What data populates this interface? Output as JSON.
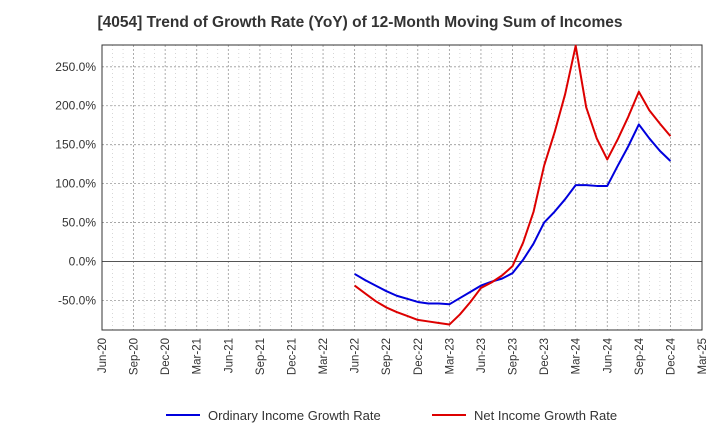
{
  "chart_data": {
    "type": "line",
    "title": "[4054]  Trend of Growth Rate (YoY) of 12-Month Moving Sum of Incomes",
    "xlabel": "",
    "ylabel": "",
    "x_ticks": [
      "Jun-20",
      "Sep-20",
      "Dec-20",
      "Mar-21",
      "Jun-21",
      "Sep-21",
      "Dec-21",
      "Mar-22",
      "Jun-22",
      "Sep-22",
      "Dec-22",
      "Mar-23",
      "Jun-23",
      "Sep-23",
      "Dec-23",
      "Mar-24",
      "Jun-24",
      "Sep-24",
      "Dec-24",
      "Mar-25"
    ],
    "y_ticks": [
      "-50.0%",
      "0.0%",
      "50.0%",
      "100.0%",
      "150.0%",
      "200.0%",
      "250.0%"
    ],
    "ylim": [
      -88,
      278
    ],
    "xlim": [
      "Jun-20",
      "Mar-25"
    ],
    "grid": true,
    "legend_position": "bottom",
    "series": [
      {
        "name": "Ordinary Income Growth Rate",
        "color": "#0000dd",
        "points": [
          [
            "Jun-22",
            -16
          ],
          [
            "Jul-22",
            -24
          ],
          [
            "Aug-22",
            -31
          ],
          [
            "Sep-22",
            -38
          ],
          [
            "Oct-22",
            -44
          ],
          [
            "Nov-22",
            -48
          ],
          [
            "Dec-22",
            -52
          ],
          [
            "Jan-23",
            -54
          ],
          [
            "Feb-23",
            -54
          ],
          [
            "Mar-23",
            -55
          ],
          [
            "Apr-23",
            -47
          ],
          [
            "May-23",
            -39
          ],
          [
            "Jun-23",
            -31
          ],
          [
            "Jul-23",
            -26
          ],
          [
            "Aug-23",
            -22
          ],
          [
            "Sep-23",
            -15
          ],
          [
            "Oct-23",
            2
          ],
          [
            "Nov-23",
            23
          ],
          [
            "Dec-23",
            50
          ],
          [
            "Jan-24",
            64
          ],
          [
            "Feb-24",
            80
          ],
          [
            "Mar-24",
            98
          ],
          [
            "Apr-24",
            98
          ],
          [
            "May-24",
            97
          ],
          [
            "Jun-24",
            97
          ],
          [
            "Jul-24",
            123
          ],
          [
            "Aug-24",
            148
          ],
          [
            "Sep-24",
            176
          ],
          [
            "Oct-24",
            158
          ],
          [
            "Nov-24",
            142
          ],
          [
            "Dec-24",
            129
          ]
        ]
      },
      {
        "name": "Net Income Growth Rate",
        "color": "#dd0000",
        "points": [
          [
            "Jun-22",
            -31
          ],
          [
            "Jul-22",
            -41
          ],
          [
            "Aug-22",
            -51
          ],
          [
            "Sep-22",
            -59
          ],
          [
            "Oct-22",
            -65
          ],
          [
            "Nov-22",
            -70
          ],
          [
            "Dec-22",
            -75
          ],
          [
            "Jan-23",
            -77
          ],
          [
            "Feb-23",
            -79
          ],
          [
            "Mar-23",
            -81
          ],
          [
            "Apr-23",
            -68
          ],
          [
            "May-23",
            -52
          ],
          [
            "Jun-23",
            -34
          ],
          [
            "Jul-23",
            -27
          ],
          [
            "Aug-23",
            -18
          ],
          [
            "Sep-23",
            -6
          ],
          [
            "Oct-23",
            24
          ],
          [
            "Nov-23",
            64
          ],
          [
            "Dec-23",
            123
          ],
          [
            "Jan-24",
            166
          ],
          [
            "Feb-24",
            215
          ],
          [
            "Mar-24",
            277
          ],
          [
            "Apr-24",
            198
          ],
          [
            "May-24",
            158
          ],
          [
            "Jun-24",
            131
          ],
          [
            "Jul-24",
            157
          ],
          [
            "Aug-24",
            186
          ],
          [
            "Sep-24",
            218
          ],
          [
            "Oct-24",
            194
          ],
          [
            "Nov-24",
            177
          ],
          [
            "Dec-24",
            161
          ]
        ]
      }
    ]
  }
}
